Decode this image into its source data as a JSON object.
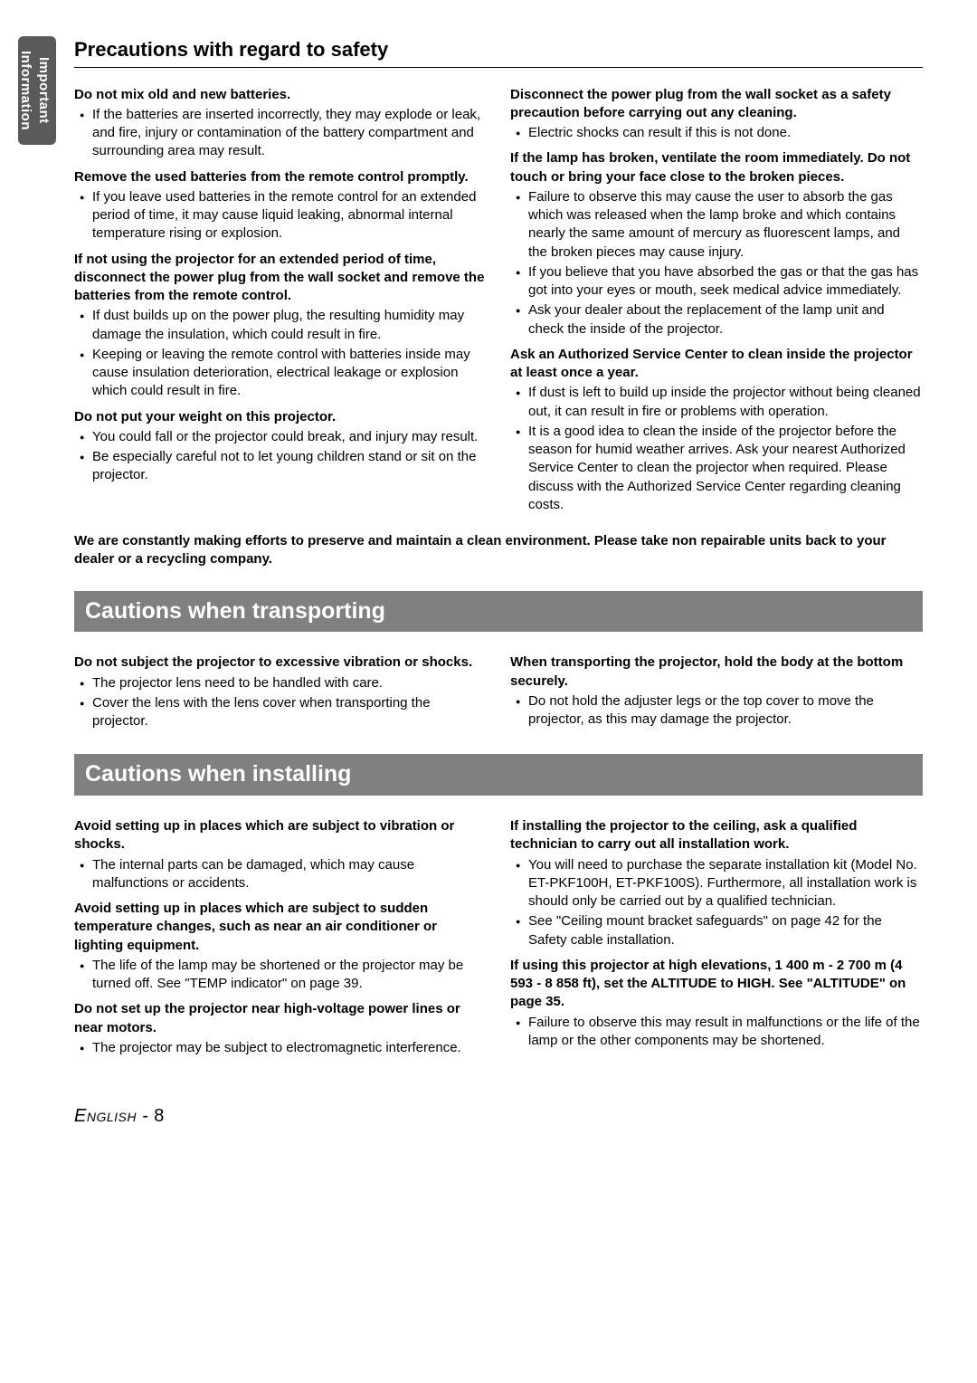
{
  "sideTab": "Important Information",
  "mainTitle": "Precautions with regard to safety",
  "safety": {
    "left": [
      {
        "head": "Do not mix old and new batteries.",
        "bullets": [
          "If the batteries are inserted incorrectly, they may explode or leak, and fire, injury or contamination of the battery compartment and surrounding area may result."
        ]
      },
      {
        "head": "Remove the used batteries from the remote control promptly.",
        "bullets": [
          "If you leave used batteries in the remote control for an extended period of time, it may cause liquid leaking, abnormal internal temperature rising or explosion."
        ]
      },
      {
        "head": "If not using the projector for an extended period of time, disconnect the power plug from the wall socket and remove the batteries from the remote control.",
        "bullets": [
          "If dust builds up on the power plug, the resulting humidity may damage the insulation, which could result in fire.",
          "Keeping or leaving the remote control with batteries inside may cause insulation deterioration, electrical leakage or explosion which could result in fire."
        ]
      },
      {
        "head": "Do not put your weight on this projector.",
        "bullets": [
          "You could fall or the projector could break, and injury may result.",
          "Be especially careful not to let young children stand or sit on the projector."
        ]
      }
    ],
    "right": [
      {
        "head": "Disconnect the power plug from the wall socket as a safety precaution before carrying out any cleaning.",
        "bullets": [
          "Electric shocks can result if this is not done."
        ]
      },
      {
        "head": "If the lamp has broken, ventilate the room immediately. Do not touch or bring your face close to the broken pieces.",
        "bullets": [
          "Failure to observe this may cause the user to absorb the gas which was released when the lamp broke and which contains nearly the same amount of mercury as fluorescent lamps, and the broken pieces may cause injury.",
          "If you believe that you have absorbed the gas or that the gas has got into your eyes or mouth, seek medical advice immediately.",
          "Ask your dealer about the replacement of the lamp unit and check the inside of the projector."
        ]
      },
      {
        "head": "Ask an Authorized Service Center to clean inside the projector at least once a year.",
        "bullets": [
          "If dust is left to build up inside the projector without being cleaned out, it can result in fire or problems with operation.",
          "It is a good idea to clean the inside of the projector before the season for humid weather arrives. Ask your nearest Authorized Service Center to clean the projector when required. Please discuss with the Authorized Service Center regarding cleaning costs."
        ]
      }
    ],
    "note": "We are constantly making efforts to preserve and maintain a clean environment. Please take non repairable units back to your dealer or a recycling company."
  },
  "transportTitle": "Cautions when transporting",
  "transport": {
    "left": [
      {
        "head": "Do not subject the projector to excessive vibration or shocks.",
        "bullets": [
          "The projector lens need to be handled with care.",
          "Cover the lens with the lens cover when transporting the projector."
        ]
      }
    ],
    "right": [
      {
        "head": "When transporting the projector, hold the body at the bottom securely.",
        "bullets": [
          "Do not hold the adjuster legs or the top cover to move the projector, as this may damage the projector."
        ]
      }
    ]
  },
  "installTitle": "Cautions when installing",
  "install": {
    "left": [
      {
        "head": "Avoid setting up in places which are subject to vibration or shocks.",
        "bullets": [
          "The internal parts can be damaged, which may cause malfunctions or accidents."
        ]
      },
      {
        "head": "Avoid setting up in places which are subject to sudden temperature changes, such as near an air conditioner or lighting equipment.",
        "bullets": [
          "The life of the lamp may be shortened or the projector may be turned off. See \"TEMP indicator\" on page 39."
        ]
      },
      {
        "head": "Do not set up the projector near high-voltage power lines or near motors.",
        "bullets": [
          "The projector may be subject to electromagnetic interference."
        ]
      }
    ],
    "right": [
      {
        "head": "If installing the projector to the ceiling, ask a qualified technician to carry out all installation work.",
        "bullets": [
          "You will need to purchase the separate installation kit (Model No. ET-PKF100H, ET-PKF100S). Furthermore, all installation work is should only be carried out by a qualified technician.",
          "See \"Ceiling mount bracket safeguards\" on page 42 for the Safety cable installation."
        ]
      },
      {
        "head": "If using this projector at high elevations, 1 400 m - 2 700 m (4 593 - 8 858 ft), set the ALTITUDE to HIGH. See \"ALTITUDE\" on page 35.",
        "bullets": [
          "Failure to observe this may result in malfunctions or the life of the lamp or the other components may be shortened."
        ]
      }
    ]
  },
  "footerLang": "English",
  "footerSep": " - ",
  "footerPage": "8"
}
